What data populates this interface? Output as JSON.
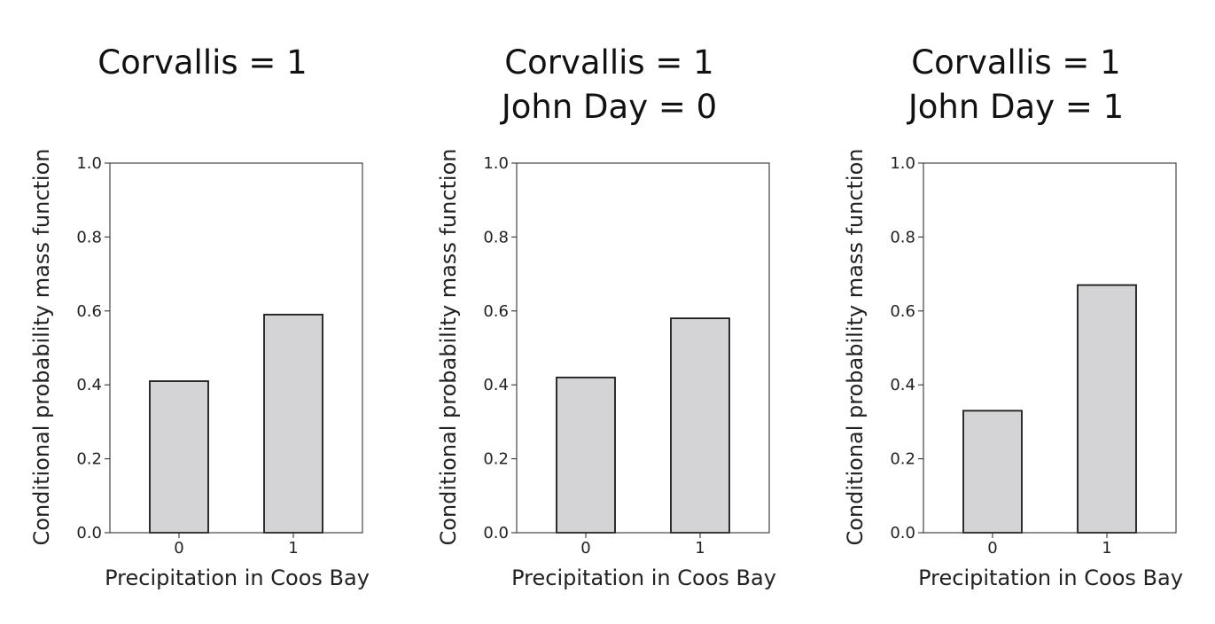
{
  "chart_data": [
    {
      "type": "bar",
      "title": [
        "Corvallis = 1"
      ],
      "categories": [
        "0",
        "1"
      ],
      "values": [
        0.41,
        0.59
      ],
      "xlabel": "Precipitation in Coos Bay",
      "ylabel": "Conditional probability mass function",
      "ylim": [
        0,
        1.0
      ],
      "yticks": [
        "0.0",
        "0.2",
        "0.4",
        "0.6",
        "0.8",
        "1.0"
      ],
      "bar_color": "#d4d3d5",
      "grid": false
    },
    {
      "type": "bar",
      "title": [
        "Corvallis = 1",
        "John Day = 0"
      ],
      "categories": [
        "0",
        "1"
      ],
      "values": [
        0.42,
        0.58
      ],
      "xlabel": "Precipitation in Coos Bay",
      "ylabel": "Conditional probability mass function",
      "ylim": [
        0,
        1.0
      ],
      "yticks": [
        "0.0",
        "0.2",
        "0.4",
        "0.6",
        "0.8",
        "1.0"
      ],
      "bar_color": "#d4d3d5",
      "grid": false
    },
    {
      "type": "bar",
      "title": [
        "Corvallis = 1",
        "John Day = 1"
      ],
      "categories": [
        "0",
        "1"
      ],
      "values": [
        0.33,
        0.67
      ],
      "xlabel": "Precipitation in Coos Bay",
      "ylabel": "Conditional probability mass function",
      "ylim": [
        0,
        1.0
      ],
      "yticks": [
        "0.0",
        "0.2",
        "0.4",
        "0.6",
        "0.8",
        "1.0"
      ],
      "bar_color": "#d4d3d5",
      "grid": false
    }
  ]
}
